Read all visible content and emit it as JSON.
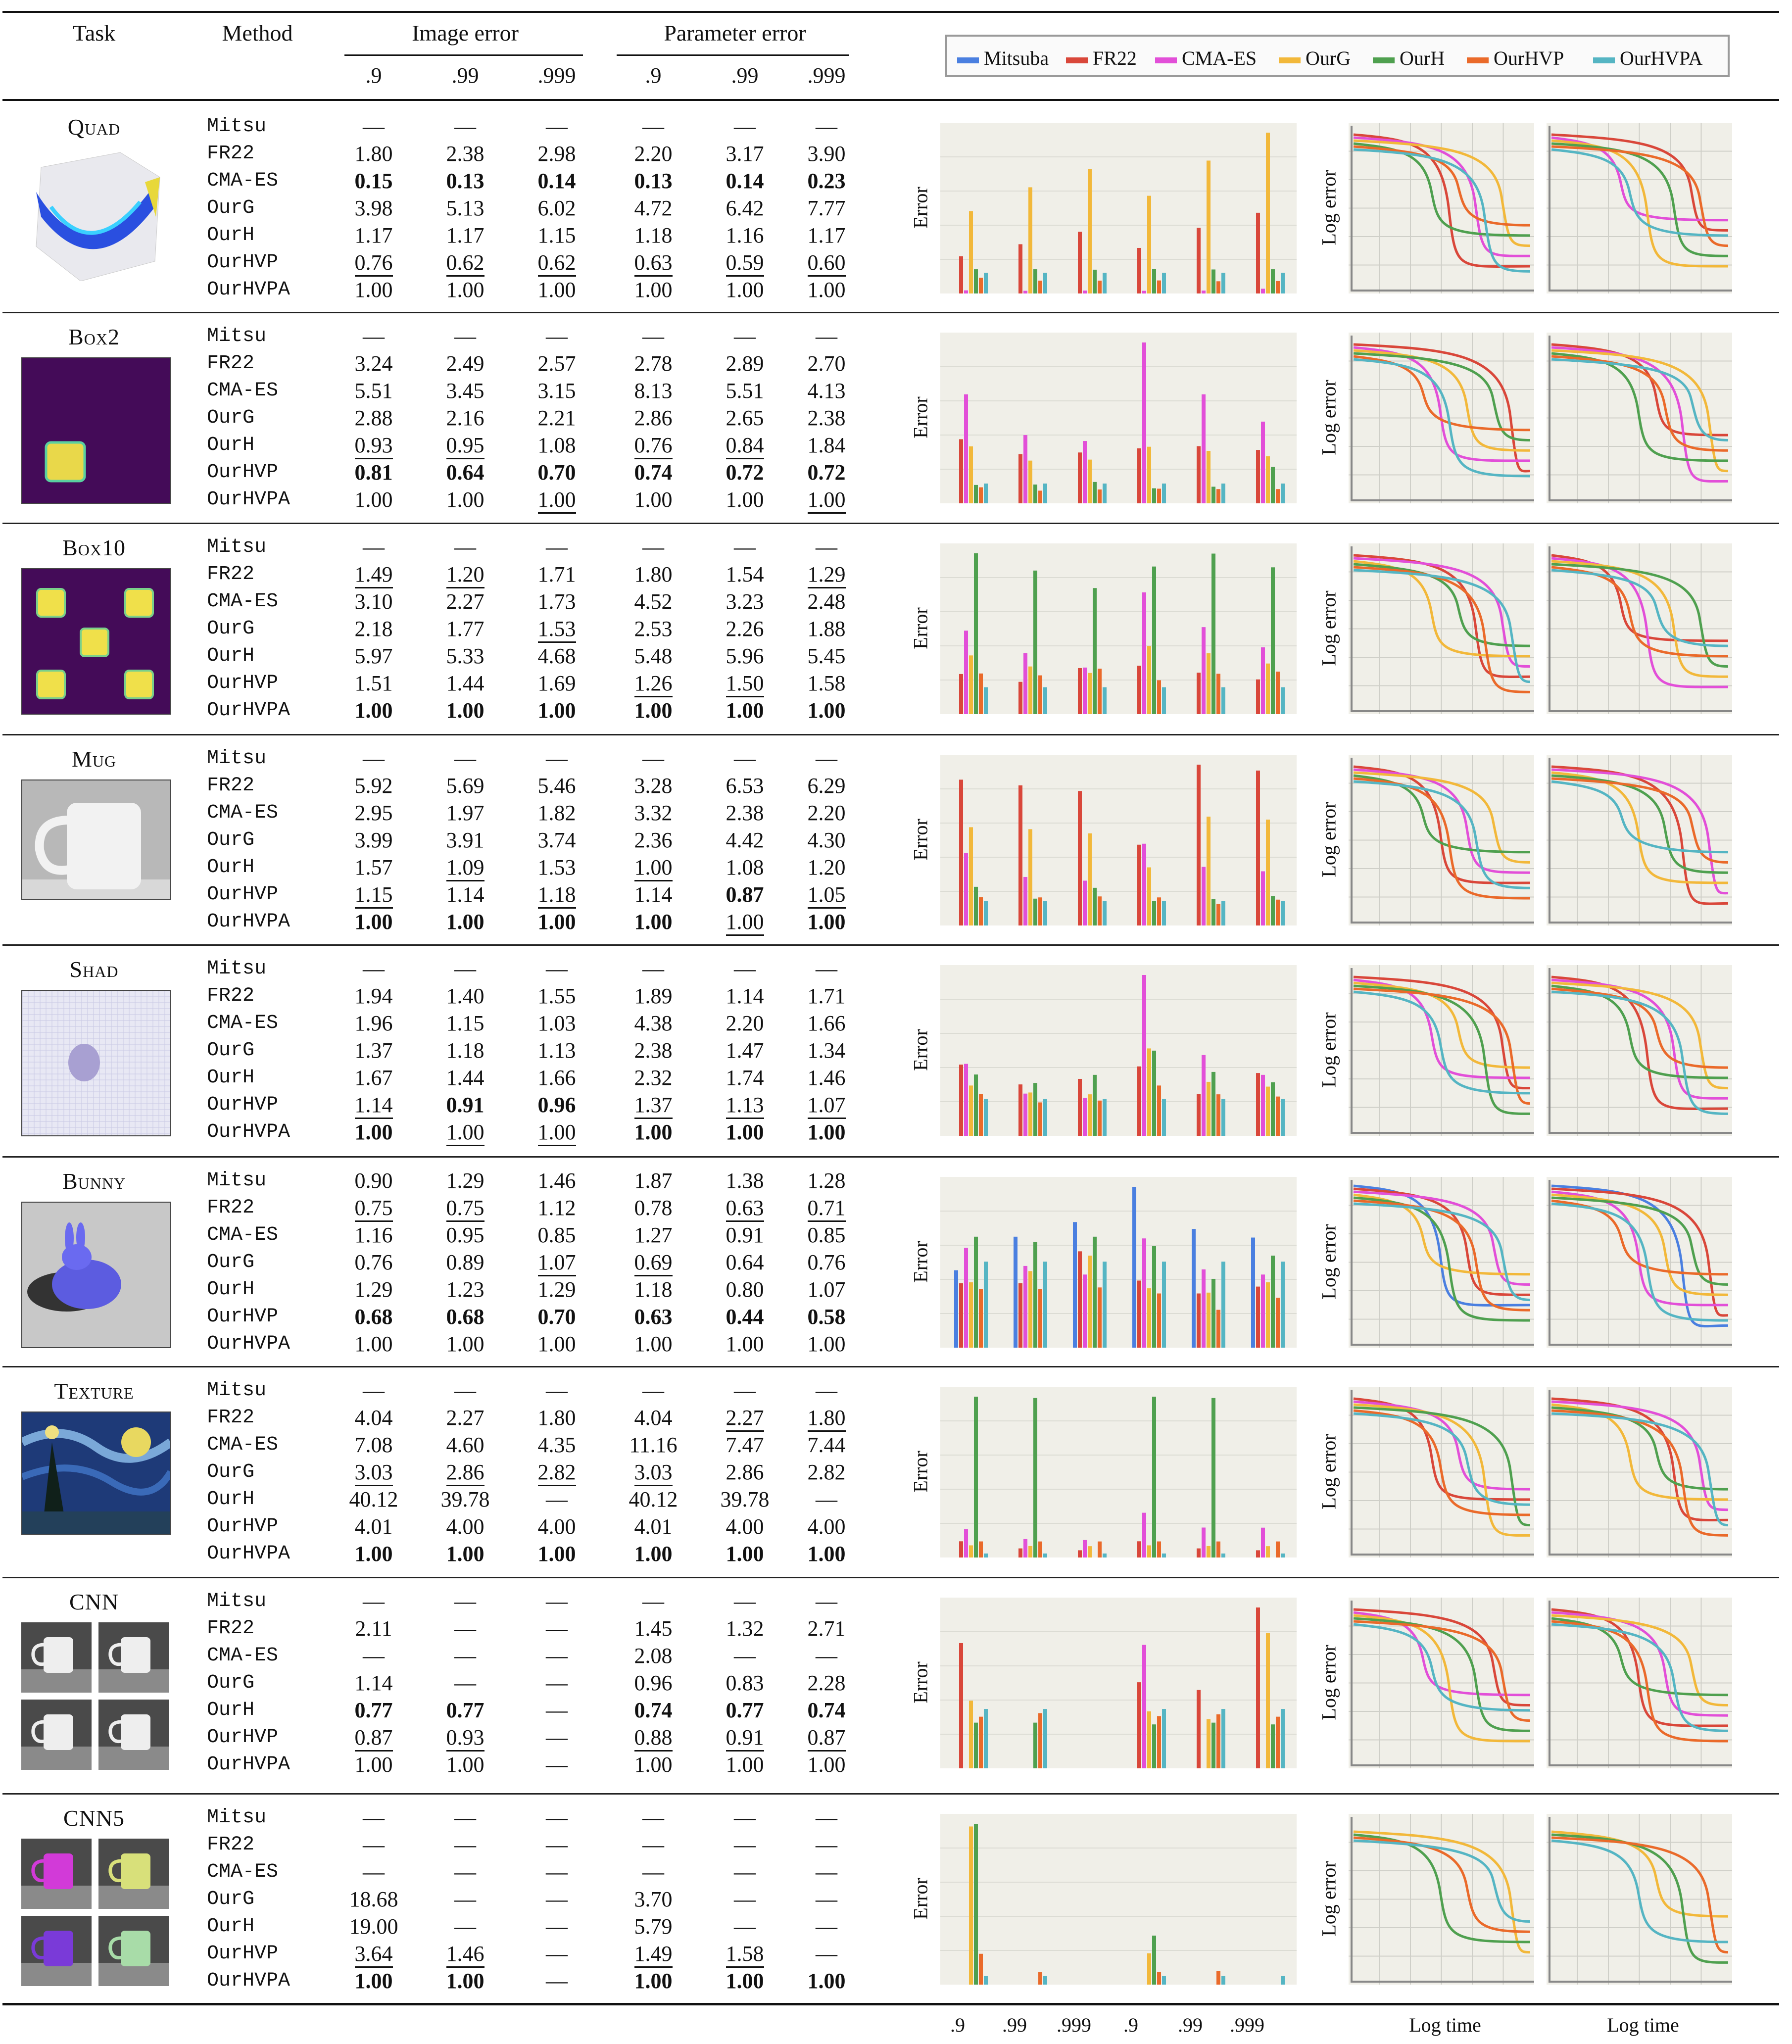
{
  "header": {
    "task": "Task",
    "method": "Method",
    "image_error": "Image error",
    "parameter_error": "Parameter error",
    "quantiles": [
      ".9",
      ".99",
      ".999",
      ".9",
      ".99",
      ".999"
    ]
  },
  "legend": [
    {
      "name": "Mitsuba",
      "color": "#4a7fe0"
    },
    {
      "name": "FR22",
      "color": "#d9473a"
    },
    {
      "name": "CMA-ES",
      "color": "#e24fd8"
    },
    {
      "name": "OurG",
      "color": "#f2b83a"
    },
    {
      "name": "OurH",
      "color": "#4fa04f"
    },
    {
      "name": "OurHVP",
      "color": "#ea6a2a"
    },
    {
      "name": "OurHVPA",
      "color": "#55b5c3"
    }
  ],
  "axis_labels": {
    "error": "Error",
    "log_error": "Log error",
    "log_time": "Log time"
  },
  "bottom_ticks": [
    ".9",
    ".99",
    ".999",
    ".9",
    ".99",
    ".999"
  ],
  "methods": [
    "Mitsu",
    "FR22",
    "CMA-ES",
    "OurG",
    "OurH",
    "OurHVP",
    "OurHVPA"
  ],
  "tasks": [
    {
      "name": "Quad",
      "thumb": "quad",
      "rows": [
        [
          "—",
          "—",
          "—",
          "—",
          "—",
          "—"
        ],
        [
          "1.80",
          "2.38",
          "2.98",
          "2.20",
          "3.17",
          "3.90"
        ],
        [
          "*0.15",
          "*0.13",
          "*0.14",
          "*0.13",
          "*0.14",
          "*0.23"
        ],
        [
          "3.98",
          "5.13",
          "6.02",
          "4.72",
          "6.42",
          "7.77"
        ],
        [
          "1.17",
          "1.17",
          "1.15",
          "1.18",
          "1.16",
          "1.17"
        ],
        [
          "_0.76",
          "_0.62",
          "_0.62",
          "_0.63",
          "_0.59",
          "_0.60"
        ],
        [
          "1.00",
          "1.00",
          "1.00",
          "1.00",
          "1.00",
          "1.00"
        ]
      ]
    },
    {
      "name": "Box2",
      "thumb": "box2",
      "rows": [
        [
          "—",
          "—",
          "—",
          "—",
          "—",
          "—"
        ],
        [
          "3.24",
          "2.49",
          "2.57",
          "2.78",
          "2.89",
          "2.70"
        ],
        [
          "5.51",
          "3.45",
          "3.15",
          "8.13",
          "5.51",
          "4.13"
        ],
        [
          "2.88",
          "2.16",
          "2.21",
          "2.86",
          "2.65",
          "2.38"
        ],
        [
          "_0.93",
          "_0.95",
          "1.08",
          "_0.76",
          "_0.84",
          "1.84"
        ],
        [
          "*0.81",
          "*0.64",
          "*0.70",
          "*0.74",
          "*0.72",
          "*0.72"
        ],
        [
          "1.00",
          "1.00",
          "_1.00",
          "1.00",
          "1.00",
          "_1.00"
        ]
      ]
    },
    {
      "name": "Box10",
      "thumb": "box10",
      "rows": [
        [
          "—",
          "—",
          "—",
          "—",
          "—",
          "—"
        ],
        [
          "_1.49",
          "_1.20",
          "1.71",
          "1.80",
          "1.54",
          "_1.29"
        ],
        [
          "3.10",
          "2.27",
          "1.73",
          "4.52",
          "3.23",
          "2.48"
        ],
        [
          "2.18",
          "1.77",
          "_1.53",
          "2.53",
          "2.26",
          "1.88"
        ],
        [
          "5.97",
          "5.33",
          "4.68",
          "5.48",
          "5.96",
          "5.45"
        ],
        [
          "1.51",
          "1.44",
          "1.69",
          "_1.26",
          "_1.50",
          "1.58"
        ],
        [
          "*1.00",
          "*1.00",
          "*1.00",
          "*1.00",
          "*1.00",
          "*1.00"
        ]
      ]
    },
    {
      "name": "Mug",
      "thumb": "mug",
      "rows": [
        [
          "—",
          "—",
          "—",
          "—",
          "—",
          "—"
        ],
        [
          "5.92",
          "5.69",
          "5.46",
          "3.28",
          "6.53",
          "6.29"
        ],
        [
          "2.95",
          "1.97",
          "1.82",
          "3.32",
          "2.38",
          "2.20"
        ],
        [
          "3.99",
          "3.91",
          "3.74",
          "2.36",
          "4.42",
          "4.30"
        ],
        [
          "1.57",
          "_1.09",
          "1.53",
          "_1.00",
          "1.08",
          "1.20"
        ],
        [
          "_1.15",
          "1.14",
          "_1.18",
          "1.14",
          "*0.87",
          "_1.05"
        ],
        [
          "*1.00",
          "*1.00",
          "*1.00",
          "*1.00",
          "_1.00",
          "*1.00"
        ]
      ]
    },
    {
      "name": "Shad",
      "thumb": "shad",
      "rows": [
        [
          "—",
          "—",
          "—",
          "—",
          "—",
          "—"
        ],
        [
          "1.94",
          "1.40",
          "1.55",
          "1.89",
          "1.14",
          "1.71"
        ],
        [
          "1.96",
          "1.15",
          "1.03",
          "4.38",
          "2.20",
          "1.66"
        ],
        [
          "1.37",
          "1.18",
          "1.13",
          "2.38",
          "1.47",
          "1.34"
        ],
        [
          "1.67",
          "1.44",
          "1.66",
          "2.32",
          "1.74",
          "1.46"
        ],
        [
          "_1.14",
          "*0.91",
          "*0.96",
          "_1.37",
          "_1.13",
          "_1.07"
        ],
        [
          "*1.00",
          "_1.00",
          "_1.00",
          "*1.00",
          "*1.00",
          "*1.00"
        ]
      ]
    },
    {
      "name": "Bunny",
      "thumb": "bunny",
      "rows": [
        [
          "0.90",
          "1.29",
          "1.46",
          "1.87",
          "1.38",
          "1.28"
        ],
        [
          "_0.75",
          "_0.75",
          "1.12",
          "0.78",
          "_0.63",
          "_0.71"
        ],
        [
          "1.16",
          "0.95",
          "0.85",
          "1.27",
          "0.91",
          "0.85"
        ],
        [
          "0.76",
          "0.89",
          "_1.07",
          "_0.69",
          "0.64",
          "0.76"
        ],
        [
          "1.29",
          "1.23",
          "1.29",
          "1.18",
          "0.80",
          "1.07"
        ],
        [
          "*0.68",
          "*0.68",
          "*0.70",
          "*0.63",
          "*0.44",
          "*0.58"
        ],
        [
          "1.00",
          "1.00",
          "1.00",
          "1.00",
          "1.00",
          "1.00"
        ]
      ]
    },
    {
      "name": "Texture",
      "thumb": "texture",
      "rows": [
        [
          "—",
          "—",
          "—",
          "—",
          "—",
          "—"
        ],
        [
          "4.04",
          "2.27",
          "1.80",
          "4.04",
          "_2.27",
          "_1.80"
        ],
        [
          "7.08",
          "4.60",
          "4.35",
          "11.16",
          "7.47",
          "7.44"
        ],
        [
          "_3.03",
          "_2.86",
          "_2.82",
          "_3.03",
          "2.86",
          "2.82"
        ],
        [
          "40.12",
          "39.78",
          "—",
          "40.12",
          "39.78",
          "—"
        ],
        [
          "4.01",
          "4.00",
          "4.00",
          "4.01",
          "4.00",
          "4.00"
        ],
        [
          "*1.00",
          "*1.00",
          "*1.00",
          "*1.00",
          "*1.00",
          "*1.00"
        ]
      ]
    },
    {
      "name": "CNN",
      "thumb": "cnn",
      "rows": [
        [
          "—",
          "—",
          "—",
          "—",
          "—",
          "—"
        ],
        [
          "2.11",
          "—",
          "—",
          "1.45",
          "1.32",
          "2.71"
        ],
        [
          "—",
          "—",
          "—",
          "2.08",
          "—",
          "—"
        ],
        [
          "1.14",
          "—",
          "—",
          "0.96",
          "0.83",
          "2.28"
        ],
        [
          "*0.77",
          "*0.77",
          "—",
          "*0.74",
          "*0.77",
          "*0.74"
        ],
        [
          "_0.87",
          "_0.93",
          "—",
          "_0.88",
          "_0.91",
          "_0.87"
        ],
        [
          "1.00",
          "1.00",
          "—",
          "1.00",
          "1.00",
          "1.00"
        ]
      ]
    },
    {
      "name": "CNN5",
      "thumb": "cnn5",
      "rows": [
        [
          "—",
          "—",
          "—",
          "—",
          "—",
          "—"
        ],
        [
          "—",
          "—",
          "—",
          "—",
          "—",
          "—"
        ],
        [
          "—",
          "—",
          "—",
          "—",
          "—",
          "—"
        ],
        [
          "18.68",
          "—",
          "—",
          "3.70",
          "—",
          "—"
        ],
        [
          "19.00",
          "—",
          "—",
          "5.79",
          "—",
          "—"
        ],
        [
          "_3.64",
          "_1.46",
          "—",
          "_1.49",
          "_1.58",
          "—"
        ],
        [
          "*1.00",
          "*1.00",
          "—",
          "*1.00",
          "*1.00",
          "*1.00"
        ]
      ]
    }
  ]
}
